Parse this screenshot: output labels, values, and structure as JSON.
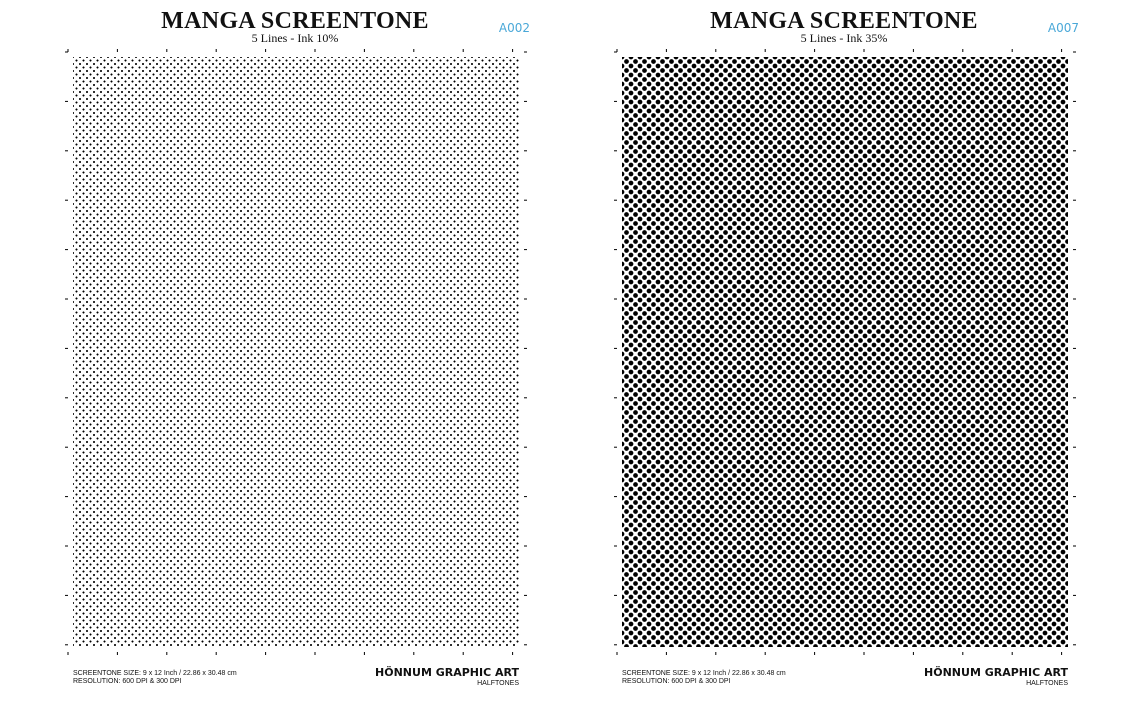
{
  "sheets": [
    {
      "title": "MANGA SCREENTONE",
      "subtitle": "5 Lines - Ink 10%",
      "code": "A002",
      "ink_percent": 10,
      "footer_size": "SCREENTONE SIZE: 9 x 12 Inch / 22.86 x 30.48 cm",
      "footer_resolution": "RESOLUTION: 600 DPI & 300 DPI",
      "brand": "HÖNNUM GRAPHIC ART",
      "brand_sub": "HALFTONES"
    },
    {
      "title": "MANGA SCREENTONE",
      "subtitle": "5 Lines - Ink 35%",
      "code": "A007",
      "ink_percent": 35,
      "footer_size": "SCREENTONE SIZE: 9 x 12 Inch / 22.86 x 30.48 cm",
      "footer_resolution": "RESOLUTION: 600 DPI & 300 DPI",
      "brand": "HÖNNUM GRAPHIC ART",
      "brand_sub": "HALFTONES"
    }
  ],
  "colors": {
    "code_accent": "#4aa8d8",
    "ink": "#000000",
    "paper": "#ffffff"
  }
}
